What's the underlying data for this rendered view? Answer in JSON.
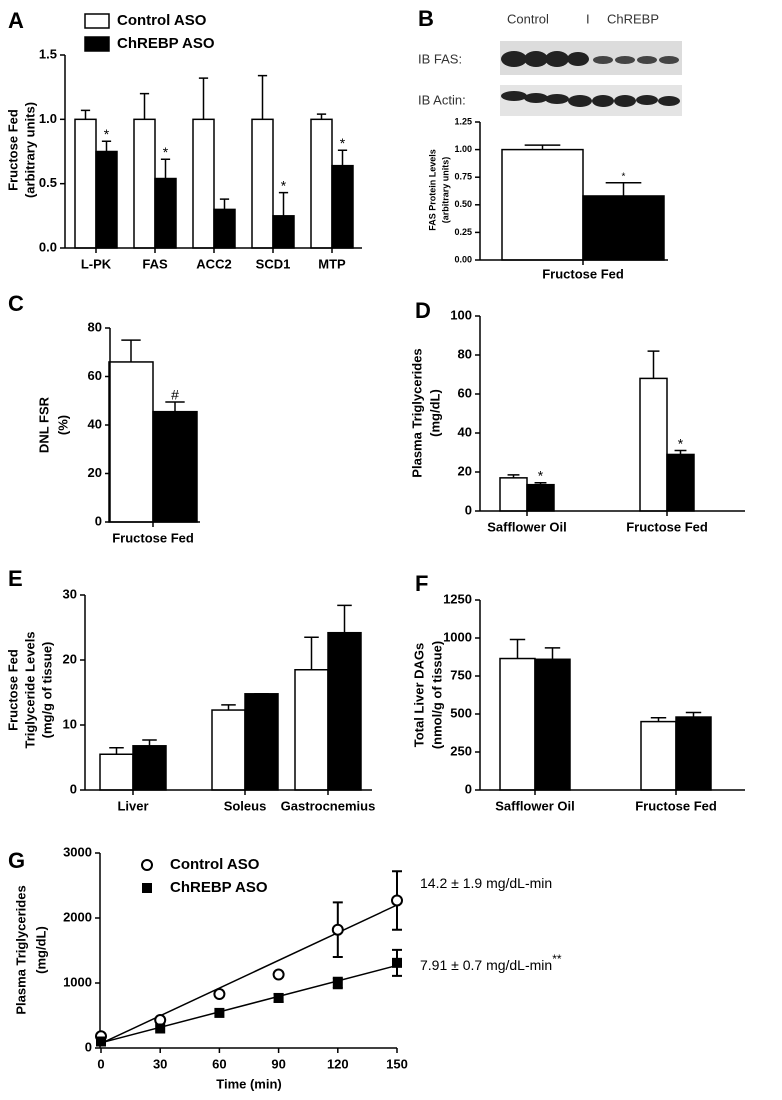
{
  "chart_data": [
    {
      "panel": "A",
      "type": "bar",
      "ylabel": [
        "Fructose Fed",
        "(arbitrary units)"
      ],
      "categories": [
        "L-PK",
        "FAS",
        "ACC2",
        "SCD1",
        "MTP"
      ],
      "series": [
        {
          "name": "Control  ASO",
          "color": "#ffffff",
          "values": [
            1.0,
            1.0,
            1.0,
            1.0,
            1.0
          ],
          "errors": [
            0.07,
            0.2,
            0.32,
            0.34,
            0.04
          ]
        },
        {
          "name": "ChREBP ASO",
          "color": "#000000",
          "values": [
            0.75,
            0.54,
            0.3,
            0.25,
            0.64
          ],
          "errors": [
            0.08,
            0.15,
            0.08,
            0.18,
            0.12
          ],
          "markers": [
            "*",
            "*",
            null,
            "*",
            "*"
          ]
        }
      ],
      "ylim": [
        0,
        1.5
      ],
      "yticks": [
        {
          "value": 0,
          "label": "0.0"
        },
        0.5,
        {
          "value": 1,
          "label": "1.0"
        },
        1.5
      ],
      "legend": "top-left"
    },
    {
      "panel": "B",
      "type": "bar",
      "blot": {
        "lanes": [
          "Control",
          "I",
          "ChREBP"
        ],
        "rows": [
          "IB FAS:",
          "IB Actin:"
        ]
      },
      "ylabel": [
        "FAS Protein Levels",
        "(arbitrary units)"
      ],
      "categories": [
        "Fructose Fed"
      ],
      "series": [
        {
          "name": "Control ASO",
          "color": "#ffffff",
          "values": [
            1.0
          ],
          "errors": [
            0.04
          ]
        },
        {
          "name": "ChREBP ASO",
          "color": "#000000",
          "values": [
            0.58
          ],
          "errors": [
            0.12
          ],
          "markers": [
            "*"
          ]
        }
      ],
      "ylim": [
        0,
        1.25
      ],
      "yticks": [
        {
          "value": 0,
          "label": "0.00"
        },
        {
          "value": 0.25,
          "label": "0.25"
        },
        {
          "value": 0.5,
          "label": "0.50"
        },
        {
          "value": 0.75,
          "label": "0.75"
        },
        {
          "value": 1,
          "label": "1.00"
        },
        {
          "value": 1.25,
          "label": "1.25"
        }
      ]
    },
    {
      "panel": "C",
      "type": "bar",
      "ylabel": [
        "DNL FSR",
        "(%)"
      ],
      "categories": [
        "Fructose  Fed"
      ],
      "series": [
        {
          "name": "Control ASO",
          "color": "#ffffff",
          "values": [
            66
          ],
          "errors": [
            9
          ]
        },
        {
          "name": "ChREBP ASO",
          "color": "#000000",
          "values": [
            45.5
          ],
          "errors": [
            4
          ],
          "markers": [
            "#"
          ]
        }
      ],
      "ylim": [
        0,
        80
      ],
      "yticks": [
        0,
        20,
        40,
        60,
        80
      ]
    },
    {
      "panel": "D",
      "type": "bar",
      "ylabel": [
        "Plasma Triglycerides",
        "(mg/dL)"
      ],
      "categories": [
        "Safflower Oil",
        "Fructose Fed"
      ],
      "series": [
        {
          "name": "Control ASO",
          "color": "#ffffff",
          "values": [
            17,
            68
          ],
          "errors": [
            1.5,
            14
          ]
        },
        {
          "name": "ChREBP ASO",
          "color": "#000000",
          "values": [
            13.5,
            29
          ],
          "errors": [
            1,
            2
          ],
          "markers": [
            "*",
            "*"
          ]
        }
      ],
      "ylim": [
        0,
        100
      ],
      "yticks": [
        0,
        20,
        40,
        60,
        80,
        100
      ]
    },
    {
      "panel": "E",
      "type": "bar",
      "ylabel": [
        "Fructose Fed",
        "Triglyceride Levels",
        "(mg/g of tissue)"
      ],
      "categories": [
        "Liver",
        "Soleus",
        "Gastrocnemius"
      ],
      "series": [
        {
          "name": "Control ASO",
          "color": "#ffffff",
          "values": [
            5.5,
            12.3,
            18.5
          ],
          "errors": [
            1,
            0.8,
            5
          ]
        },
        {
          "name": "ChREBP ASO",
          "color": "#000000",
          "values": [
            6.8,
            14.8,
            24.2
          ],
          "errors": [
            0.9,
            0,
            4.2
          ]
        }
      ],
      "ylim": [
        0,
        30
      ],
      "yticks": [
        0,
        10,
        20,
        30
      ]
    },
    {
      "panel": "F",
      "type": "bar",
      "ylabel": [
        "Total Liver  DAGs",
        "(nmol/g of tissue)"
      ],
      "categories": [
        "Safflower Oil",
        "Fructose Fed"
      ],
      "series": [
        {
          "name": "Control ASO",
          "color": "#ffffff",
          "values": [
            865,
            450
          ],
          "errors": [
            125,
            25
          ]
        },
        {
          "name": "ChREBP ASO",
          "color": "#000000",
          "values": [
            860,
            480
          ],
          "errors": [
            75,
            30
          ]
        }
      ],
      "ylim": [
        0,
        1250
      ],
      "yticks": [
        0,
        250,
        500,
        750,
        1000,
        1250
      ]
    },
    {
      "panel": "G",
      "type": "scatter",
      "ylabel": [
        "Plasma Triglycerides",
        "(mg/dL)"
      ],
      "xlabel": "Time (min)",
      "x": [
        0,
        30,
        60,
        90,
        120,
        150
      ],
      "series": [
        {
          "name": "Control ASO",
          "color": "#ffffff",
          "marker": "circle",
          "values": [
            180,
            430,
            830,
            1130,
            1820,
            2270
          ],
          "errors": [
            0,
            0,
            0,
            0,
            420,
            450
          ],
          "fit_y": [
            70,
            2200
          ]
        },
        {
          "name": "ChREBP ASO",
          "color": "#000000",
          "marker": "square",
          "values": [
            100,
            300,
            540,
            770,
            1000,
            1310
          ],
          "errors": [
            0,
            0,
            0,
            60,
            80,
            200
          ],
          "fit_y": [
            80,
            1270
          ]
        }
      ],
      "annotations": [
        {
          "text": "14.2 ± 1.9 mg/dL-min"
        },
        {
          "text": "7.91 ± 0.7 mg/dL-min",
          "sup": "**"
        }
      ],
      "xlim": [
        0,
        150
      ],
      "xticks": [
        0,
        30,
        60,
        90,
        120,
        150
      ],
      "ylim": [
        0,
        3000
      ],
      "yticks": [
        0,
        1000,
        2000,
        3000
      ],
      "legend": "top-left"
    }
  ]
}
